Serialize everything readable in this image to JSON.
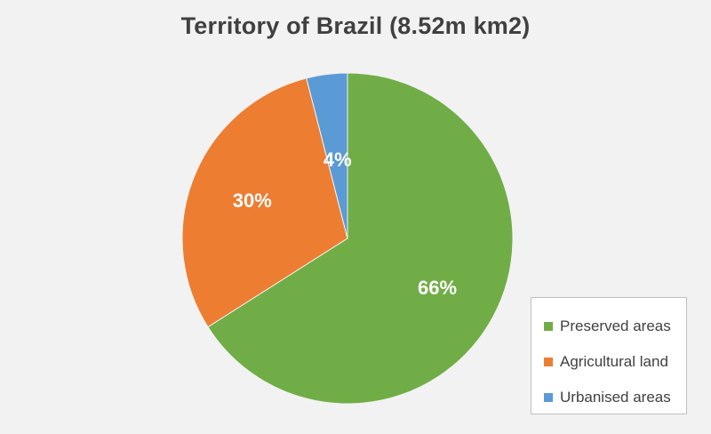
{
  "chart_data": {
    "type": "pie",
    "title": "Territory of Brazil (8.52m km2)",
    "categories": [
      "Preserved areas",
      "Agricultural land",
      "Urbanised areas"
    ],
    "values": [
      66,
      30,
      4
    ],
    "data_labels": [
      "66%",
      "30%",
      "4%"
    ],
    "colors": [
      "#70ad47",
      "#ed7d31",
      "#5b9bd5"
    ],
    "legend_position": "bottom-right"
  }
}
